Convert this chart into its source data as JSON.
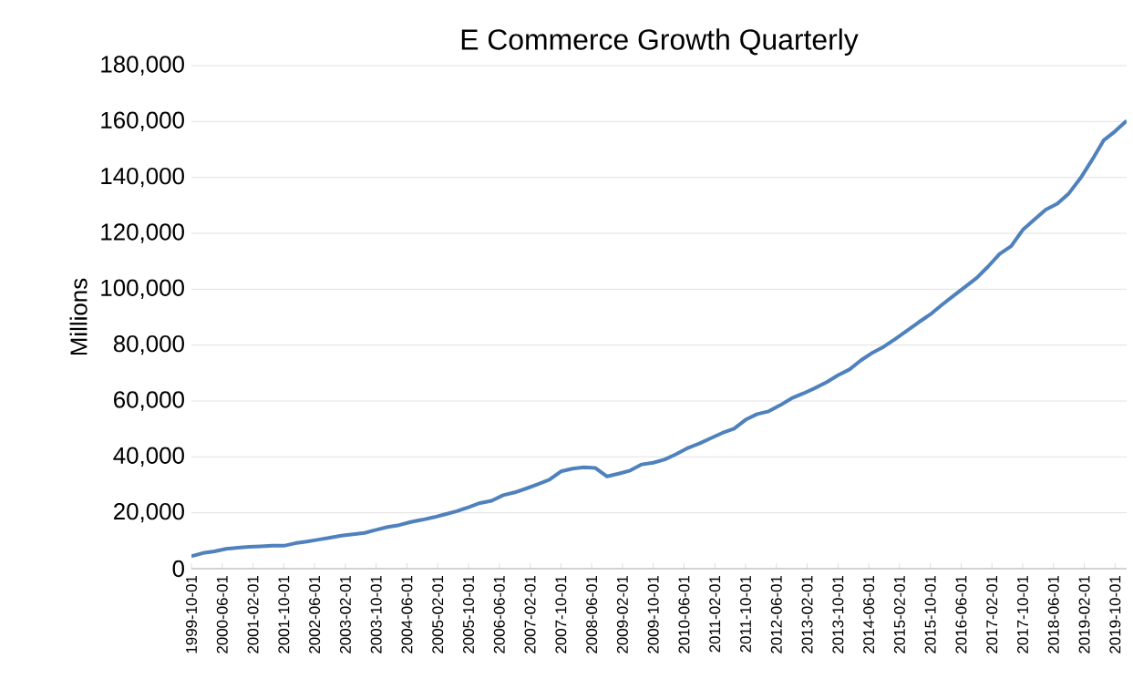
{
  "chart_data": {
    "type": "line",
    "title": "E Commerce Growth Quarterly",
    "ylabel": "Millions",
    "x": [
      "1999-10-01",
      "2000-01-01",
      "2000-04-01",
      "2000-07-01",
      "2000-10-01",
      "2001-01-01",
      "2001-04-01",
      "2001-07-01",
      "2001-10-01",
      "2002-01-01",
      "2002-04-01",
      "2002-07-01",
      "2002-10-01",
      "2003-01-01",
      "2003-04-01",
      "2003-07-01",
      "2003-10-01",
      "2004-01-01",
      "2004-04-01",
      "2004-07-01",
      "2004-10-01",
      "2005-01-01",
      "2005-04-01",
      "2005-07-01",
      "2005-10-01",
      "2006-01-01",
      "2006-04-01",
      "2006-07-01",
      "2006-10-01",
      "2007-01-01",
      "2007-04-01",
      "2007-07-01",
      "2007-10-01",
      "2008-01-01",
      "2008-04-01",
      "2008-07-01",
      "2008-10-01",
      "2009-01-01",
      "2009-04-01",
      "2009-07-01",
      "2009-10-01",
      "2010-01-01",
      "2010-04-01",
      "2010-07-01",
      "2010-10-01",
      "2011-01-01",
      "2011-04-01",
      "2011-07-01",
      "2011-10-01",
      "2012-01-01",
      "2012-04-01",
      "2012-07-01",
      "2012-10-01",
      "2013-01-01",
      "2013-04-01",
      "2013-07-01",
      "2013-10-01",
      "2014-01-01",
      "2014-04-01",
      "2014-07-01",
      "2014-10-01",
      "2015-01-01",
      "2015-04-01",
      "2015-07-01",
      "2015-10-01",
      "2016-01-01",
      "2016-04-01",
      "2016-07-01",
      "2016-10-01",
      "2017-01-01",
      "2017-04-01",
      "2017-07-01",
      "2017-10-01",
      "2018-01-01",
      "2018-04-01",
      "2018-07-01",
      "2018-10-01",
      "2019-01-01",
      "2019-04-01",
      "2019-07-01",
      "2019-10-01",
      "2020-01-01"
    ],
    "series": [
      {
        "color": "#4f81bd",
        "values": [
          4500,
          5600,
          6200,
          7100,
          7500,
          7800,
          8000,
          8200,
          8200,
          9100,
          9700,
          10400,
          11100,
          11800,
          12300,
          12800,
          13900,
          14900,
          15600,
          16700,
          17500,
          18400,
          19500,
          20600,
          22000,
          23500,
          24300,
          26300,
          27300,
          28700,
          30200,
          31800,
          34800,
          35800,
          36300,
          36000,
          33000,
          34000,
          35100,
          37300,
          37900,
          39100,
          41000,
          43200,
          44800,
          46700,
          48600,
          50100,
          53300,
          55300,
          56300,
          58500,
          61000,
          62700,
          64600,
          66700,
          69200,
          71300,
          74600,
          77300,
          79500,
          82300,
          85200,
          88200,
          91000,
          94400,
          97600,
          100800,
          104000,
          108100,
          112600,
          115400,
          121200,
          124900,
          128500,
          130600,
          134300,
          139700,
          146200,
          153200,
          156500,
          160300
        ]
      }
    ],
    "xlim": [
      "1999-10-01",
      "2020-01-01"
    ],
    "xticks": [
      "1999-10-01",
      "2000-06-01",
      "2001-02-01",
      "2001-10-01",
      "2002-06-01",
      "2003-02-01",
      "2003-10-01",
      "2004-06-01",
      "2005-02-01",
      "2005-10-01",
      "2006-06-01",
      "2007-02-01",
      "2007-10-01",
      "2008-06-01",
      "2009-02-01",
      "2009-10-01",
      "2010-06-01",
      "2011-02-01",
      "2011-10-01",
      "2012-06-01",
      "2013-02-01",
      "2013-10-01",
      "2014-06-01",
      "2015-02-01",
      "2015-10-01",
      "2016-06-01",
      "2017-02-01",
      "2017-10-01",
      "2018-06-01",
      "2019-02-01",
      "2019-10-01"
    ],
    "ylim": [
      0,
      180000
    ],
    "yticks": [
      0,
      {
        "value": 20000,
        "label": "20,000"
      },
      {
        "value": 40000,
        "label": "40,000"
      },
      {
        "value": 60000,
        "label": "60,000"
      },
      {
        "value": 80000,
        "label": "80,000"
      },
      {
        "value": 100000,
        "label": "100,000"
      },
      {
        "value": 120000,
        "label": "120,000"
      },
      {
        "value": 140000,
        "label": "140,000"
      },
      {
        "value": 160000,
        "label": "160,000"
      },
      {
        "value": 180000,
        "label": "180,000"
      }
    ],
    "grid": "y",
    "line_style": "solid"
  }
}
